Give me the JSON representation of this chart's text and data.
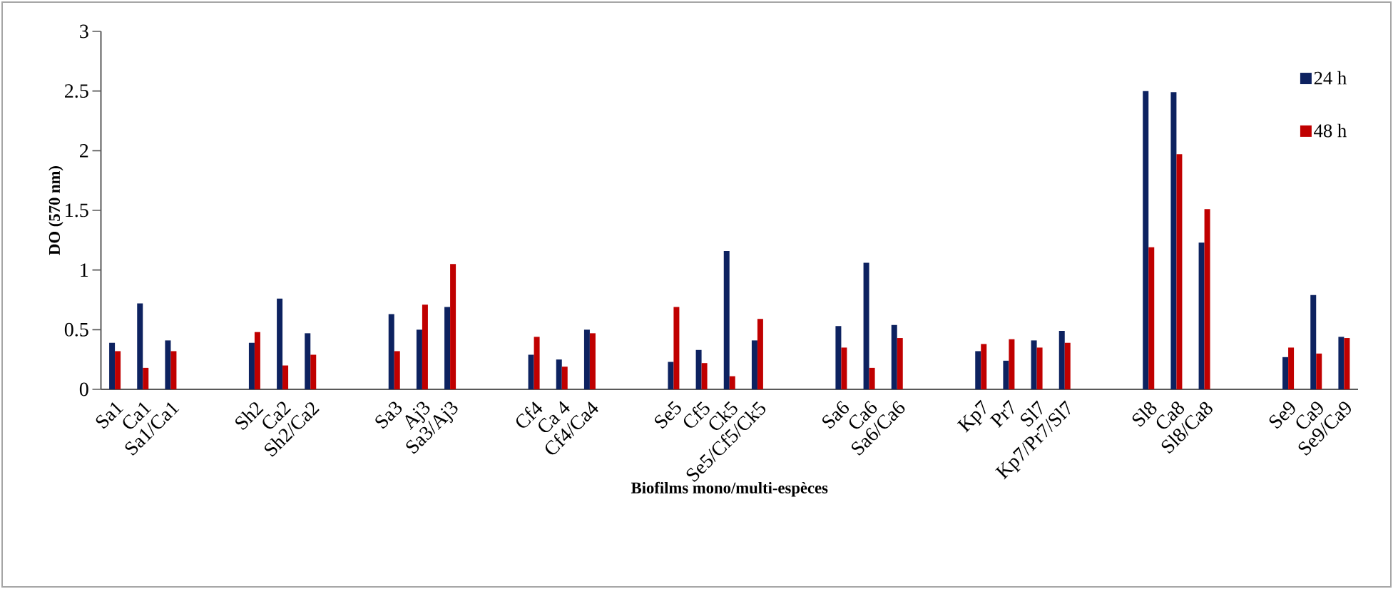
{
  "chart_data": {
    "type": "bar",
    "xlabel": "Biofilms mono/multi-espèces",
    "ylabel": "DO (570 nm)",
    "categories": [
      "Sa1",
      "Ca1",
      "Sa1/Ca1",
      null,
      null,
      "Sh2",
      "Ca2",
      "Sh2/Ca2",
      null,
      null,
      "Sa3",
      "Aj3",
      "Sa3/Aj3",
      null,
      null,
      "Cf4",
      "Ca 4",
      "Cf4/Ca4",
      null,
      null,
      "Se5",
      "Cf5",
      "Ck5",
      "Se5/Cf5/Ck5",
      null,
      null,
      "Sa6",
      "Ca6",
      "Sa6/Ca6",
      null,
      null,
      "Kp7",
      "Pr7",
      "Sl7",
      "Kp7/Pr7/Sl7",
      null,
      null,
      "Sl8",
      "Ca8",
      "Sl8/Ca8",
      null,
      null,
      "Se9",
      "Ca9",
      "Se9/Ca9"
    ],
    "series": [
      {
        "name": "24 h",
        "color": "#0d2260",
        "values": [
          0.39,
          0.72,
          0.41,
          null,
          null,
          0.39,
          0.76,
          0.47,
          null,
          null,
          0.63,
          0.5,
          0.69,
          null,
          null,
          0.29,
          0.25,
          0.5,
          null,
          null,
          0.23,
          0.33,
          1.16,
          0.41,
          null,
          null,
          0.53,
          1.06,
          0.54,
          null,
          null,
          0.32,
          0.24,
          0.41,
          0.49,
          null,
          null,
          2.5,
          2.49,
          1.23,
          null,
          null,
          0.27,
          0.79,
          0.44
        ]
      },
      {
        "name": "48 h",
        "color": "#c00000",
        "values": [
          0.32,
          0.18,
          0.32,
          null,
          null,
          0.48,
          0.2,
          0.29,
          null,
          null,
          0.32,
          0.71,
          1.05,
          null,
          null,
          0.44,
          0.19,
          0.47,
          null,
          null,
          0.69,
          0.22,
          0.11,
          0.59,
          null,
          null,
          0.35,
          0.18,
          0.43,
          null,
          null,
          0.38,
          0.42,
          0.35,
          0.39,
          null,
          null,
          1.19,
          1.97,
          1.51,
          null,
          null,
          0.35,
          0.3,
          0.43
        ]
      }
    ],
    "ylim": [
      0,
      3
    ],
    "yticks": [
      0,
      0.5,
      1,
      1.5,
      2,
      2.5,
      3
    ],
    "legend": "top right",
    "grid": false
  }
}
